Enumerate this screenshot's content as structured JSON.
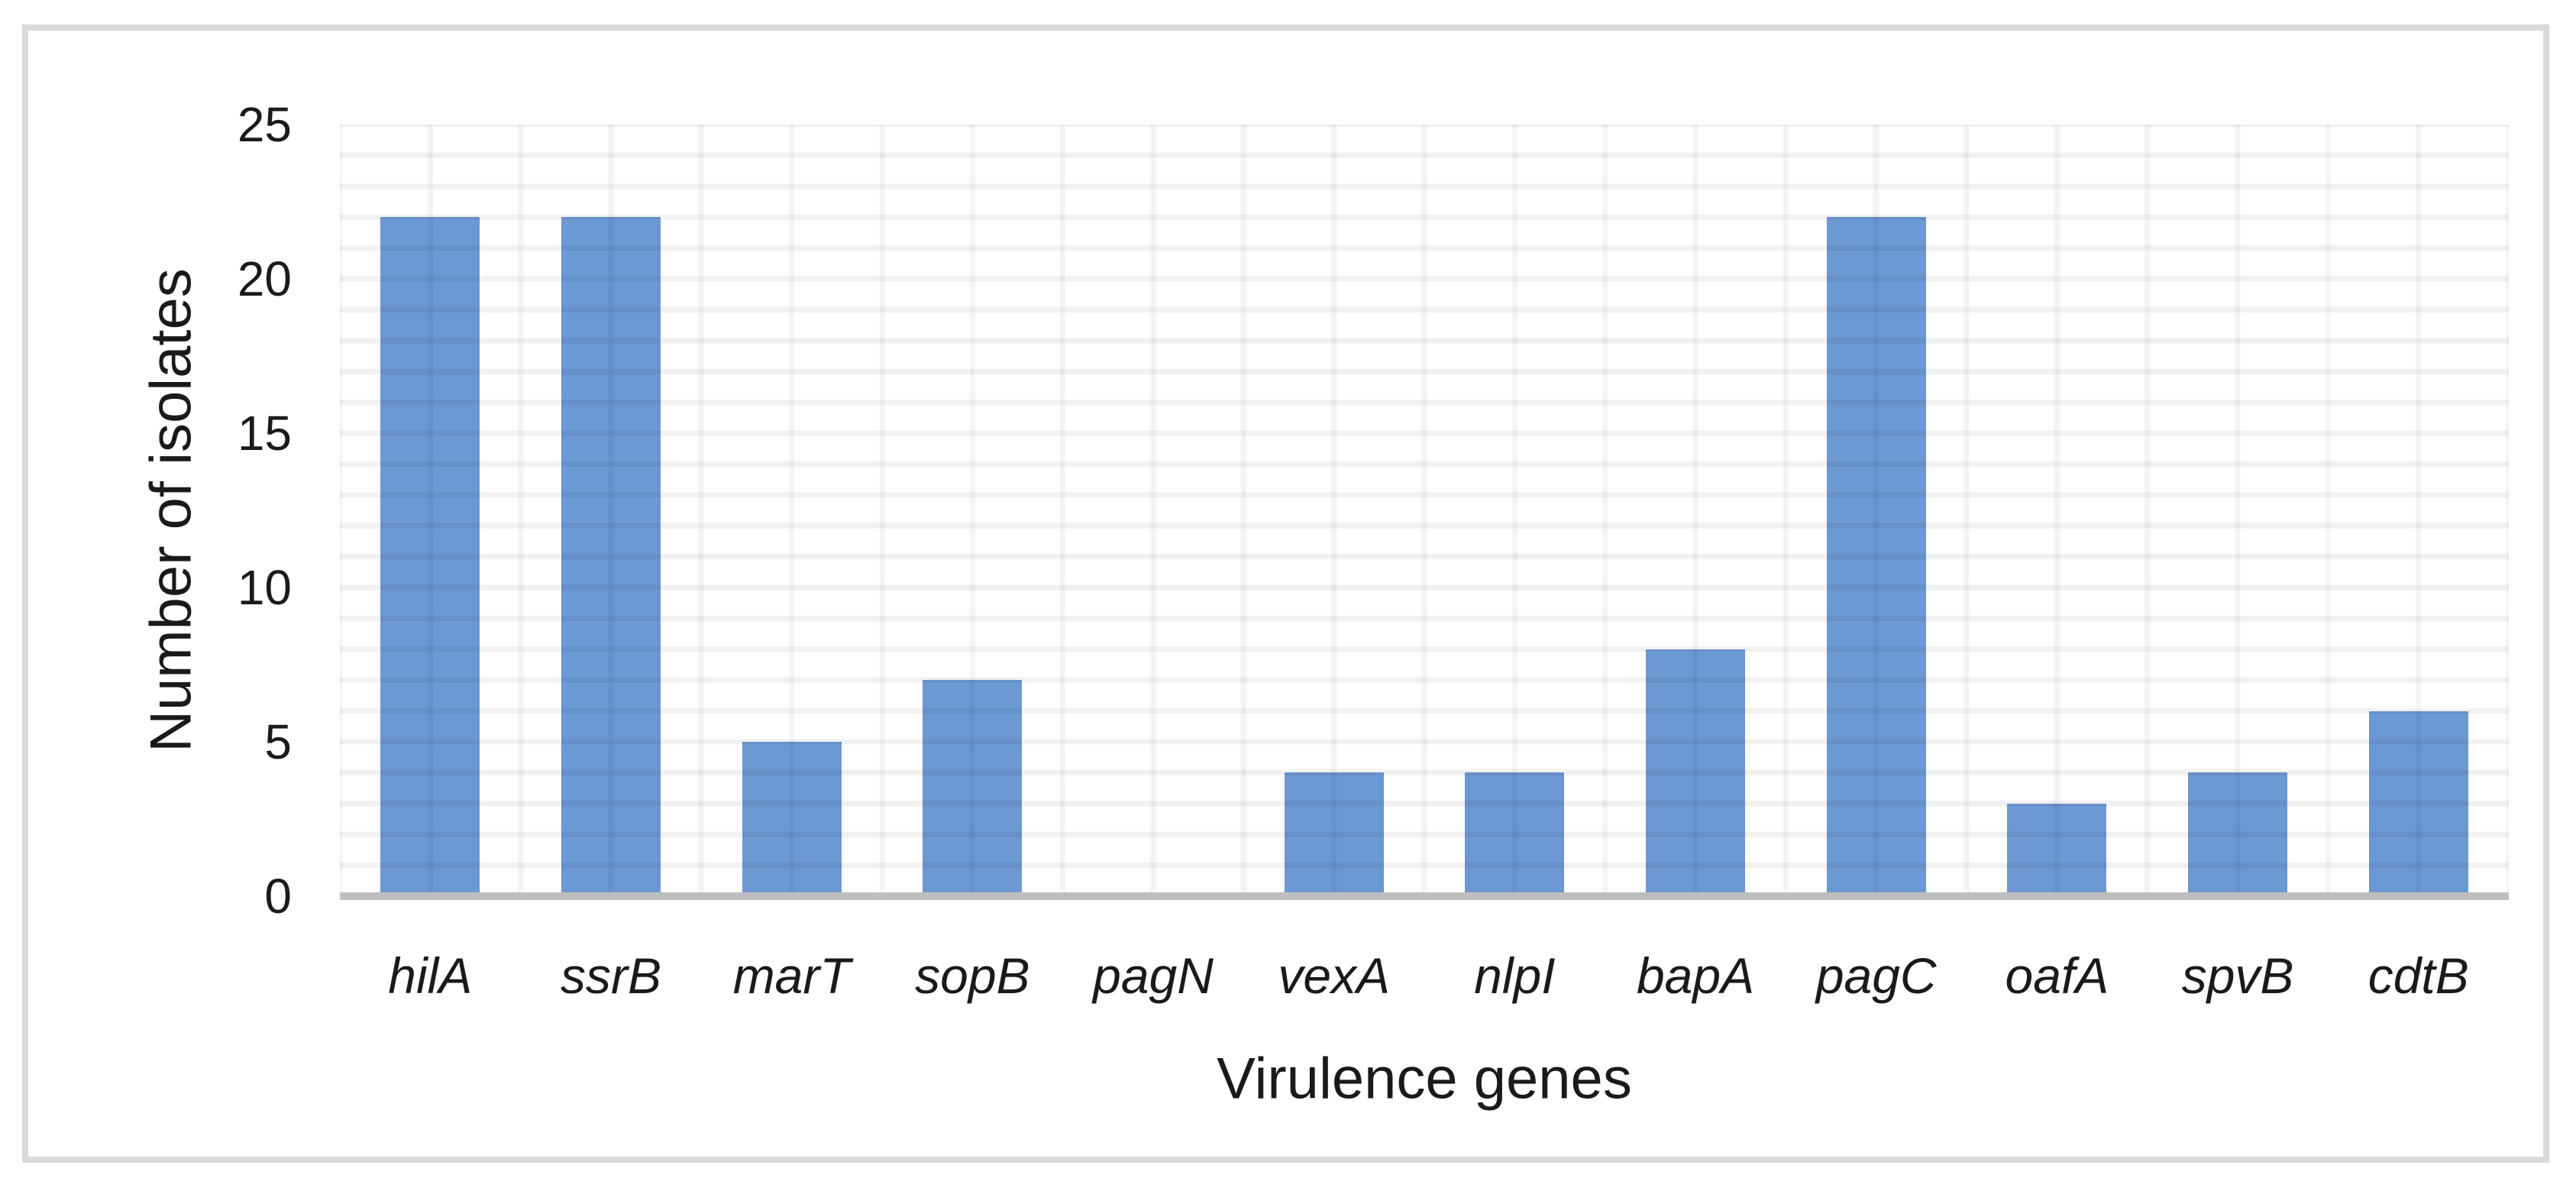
{
  "chart_data": {
    "type": "bar",
    "categories": [
      "hilA",
      "ssrB",
      "marT",
      "sopB",
      "pagN",
      "vexA",
      "nlpI",
      "bapA",
      "pagC",
      "oafA",
      "spvB",
      "cdtB"
    ],
    "values": [
      22,
      22,
      5,
      7,
      0,
      4,
      4,
      8,
      22,
      3,
      4,
      6
    ],
    "title": "",
    "xlabel": "Virulence genes",
    "ylabel": "Number of isolates",
    "ylim": [
      0,
      25
    ],
    "yticks": [
      0,
      5,
      10,
      15,
      20,
      25
    ],
    "grid": "fine minor grid, horizontal every 1 unit and vertical every half category, shown over bars",
    "legend": "none",
    "bar_color": "#6C98D4",
    "axis_line_color": "#BEBEBE",
    "grid_color": "#F0F0F0",
    "figure_border_color": "#D9D9D9",
    "text_color": "#1A1A1A",
    "category_style": "italic"
  }
}
